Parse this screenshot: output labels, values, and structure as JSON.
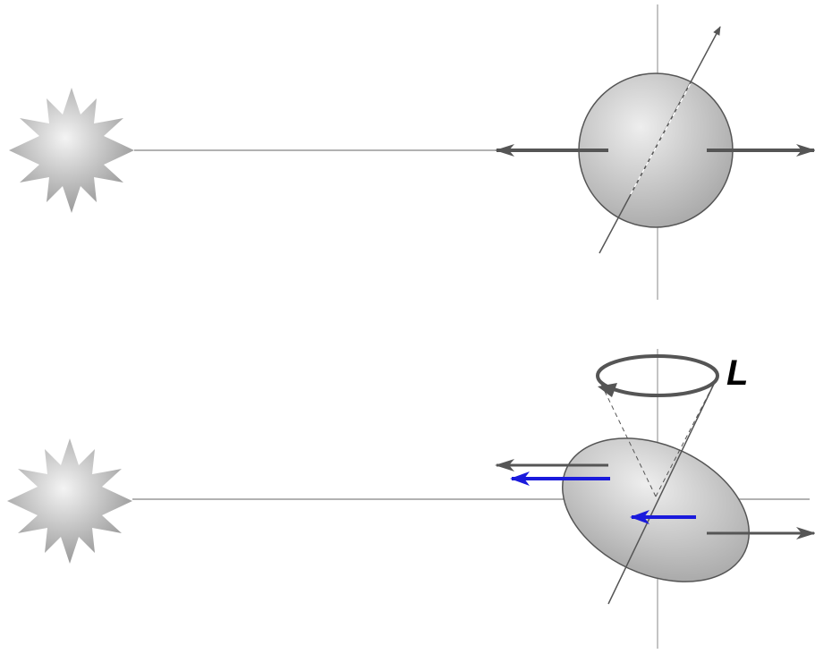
{
  "diagram": {
    "label": "L"
  }
}
